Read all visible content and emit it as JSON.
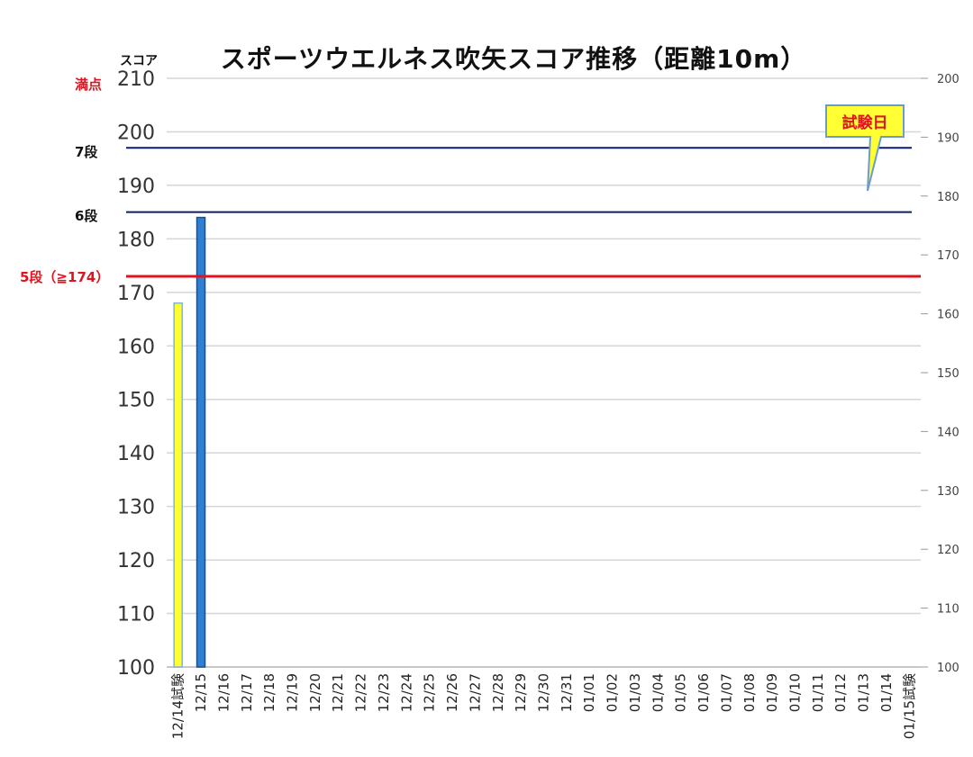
{
  "chart_data": {
    "type": "bar",
    "title": "スポーツウエルネス吹矢スコア推移（距離10m）",
    "ylabel": "スコア",
    "ylim": [
      100,
      210
    ],
    "yticks": [
      100,
      110,
      120,
      130,
      140,
      150,
      160,
      170,
      180,
      190,
      200,
      210
    ],
    "y2lim": [
      100,
      200
    ],
    "y2ticks": [
      100,
      110,
      120,
      130,
      140,
      150,
      160,
      170,
      180,
      190,
      200
    ],
    "grid": true,
    "categories": [
      "12/14試験",
      "12/15",
      "12/16",
      "12/17",
      "12/18",
      "12/19",
      "12/20",
      "12/21",
      "12/22",
      "12/23",
      "12/24",
      "12/25",
      "12/26",
      "12/27",
      "12/28",
      "12/29",
      "12/30",
      "12/31",
      "01/01",
      "01/02",
      "01/03",
      "01/04",
      "01/05",
      "01/06",
      "01/07",
      "01/08",
      "01/09",
      "01/10",
      "01/11",
      "01/12",
      "01/13",
      "01/14",
      "01/15試験"
    ],
    "values": [
      168,
      184,
      null,
      null,
      null,
      null,
      null,
      null,
      null,
      null,
      null,
      null,
      null,
      null,
      null,
      null,
      null,
      null,
      null,
      null,
      null,
      null,
      null,
      null,
      null,
      null,
      null,
      null,
      null,
      null,
      null,
      null,
      null
    ],
    "bar_colors": {
      "test": "#ffff33",
      "test_border": "#7fb2e0",
      "practice": "#2f7fd2",
      "practice_border": "#1b4f8f"
    },
    "thresholds": [
      {
        "label": "満点",
        "value": 210,
        "color": "#e0141e",
        "line": false
      },
      {
        "label": "7段",
        "value": 197,
        "color": "#0a1f6a",
        "line": true
      },
      {
        "label": "6段",
        "value": 185,
        "color": "#0a1f6a",
        "line": true
      },
      {
        "label": "5段（≧174）",
        "value": 173,
        "color": "#e0141e",
        "line": true
      }
    ],
    "annotations": [
      {
        "text": "試験日",
        "fill": "#ffff33",
        "border": "#6a9bd1"
      }
    ]
  }
}
